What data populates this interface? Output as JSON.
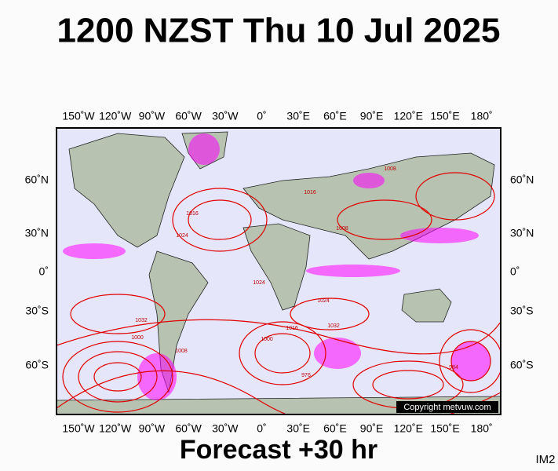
{
  "title": "1200 NZST Thu 10 Jul 2025",
  "footer": "Forecast +30 hr",
  "image_id": "IM2",
  "copyright": "Copyright metvuw.com",
  "longitude_labels": [
    "150˚W",
    "120˚W",
    "90˚W",
    "60˚W",
    "30˚W",
    "0˚",
    "30˚E",
    "60˚E",
    "90˚E",
    "120˚E",
    "150˚E",
    "180˚"
  ],
  "latitude_labels": [
    "60˚N",
    "30˚N",
    "0˚",
    "30˚S",
    "60˚S"
  ],
  "pressure_labels": [
    "1008",
    "1024",
    "1016",
    "1016",
    "1024",
    "1032",
    "1024",
    "1016",
    "1000",
    "976",
    "984",
    "1032",
    "1000",
    "1008",
    "1008"
  ]
}
